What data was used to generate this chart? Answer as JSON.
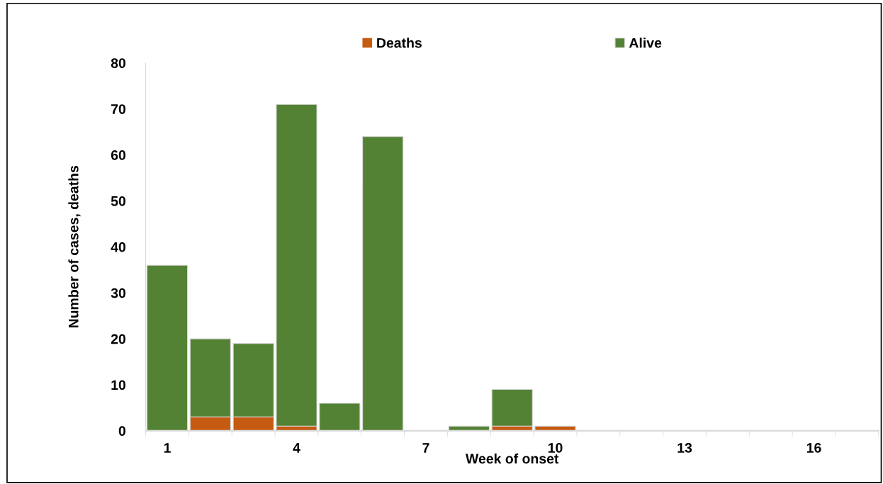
{
  "chart_data": {
    "type": "bar",
    "stacked": true,
    "xlabel": "Week of onset",
    "ylabel": "Number of cases, deaths",
    "categories": [
      "1",
      null,
      null,
      "4",
      null,
      null,
      "7",
      null,
      null,
      "10",
      null,
      null,
      "13",
      null,
      null,
      "16",
      null
    ],
    "series": [
      {
        "name": "Deaths",
        "color": "#c55a11",
        "values": [
          0,
          3,
          3,
          1,
          0,
          0,
          0,
          0,
          1,
          1,
          0,
          0,
          0,
          0,
          0,
          0,
          0
        ]
      },
      {
        "name": "Alive",
        "color": "#548235",
        "values": [
          36,
          17,
          16,
          70,
          6,
          64,
          0,
          1,
          8,
          0,
          0,
          0,
          0,
          0,
          0,
          0,
          0
        ]
      }
    ],
    "ylim": [
      0,
      80
    ],
    "yticks": [
      0,
      10,
      20,
      30,
      40,
      50,
      60,
      70,
      80
    ],
    "grid": false,
    "legend": "top"
  }
}
